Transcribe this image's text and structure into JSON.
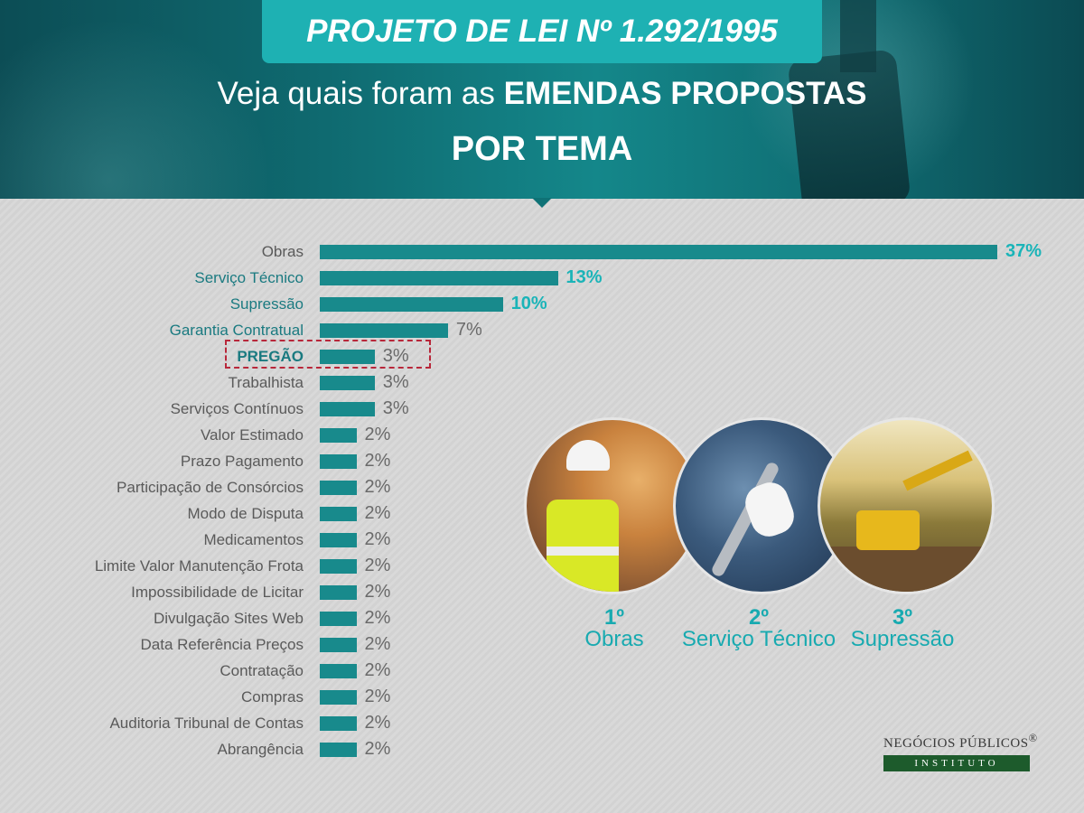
{
  "header": {
    "title": "PROJETO DE LEI Nº 1.292/1995",
    "subtitle_prefix": "Veja quais foram as",
    "subtitle_emphasis": "EMENDAS PROPOSTAS",
    "subtitle_line2": "POR TEMA"
  },
  "chart_data": {
    "type": "bar",
    "orientation": "horizontal",
    "title": "",
    "xlabel": "",
    "ylabel": "",
    "unit": "%",
    "xlim": [
      0,
      37
    ],
    "categories": [
      "Obras",
      "Serviço Técnico",
      "Supressão",
      "Garantia Contratual",
      "PREGÃO",
      "Trabalhista",
      "Serviços Contínuos",
      "Valor Estimado",
      "Prazo Pagamento",
      "Participação de Consórcios",
      "Modo de Disputa",
      "Medicamentos",
      "Limite Valor Manutenção Frota",
      "Impossibilidade de Licitar",
      "Divulgação Sites Web",
      "Data Referência Preços",
      "Contratação",
      "Compras",
      "Auditoria Tribunal de Contas",
      "Abrangência"
    ],
    "values": [
      37,
      13,
      10,
      7,
      3,
      3,
      3,
      2,
      2,
      2,
      2,
      2,
      2,
      2,
      2,
      2,
      2,
      2,
      2,
      2
    ],
    "value_labels": [
      "37%",
      "13%",
      "10%",
      "7%",
      "3%",
      "3%",
      "3%",
      "2%",
      "2%",
      "2%",
      "2%",
      "2%",
      "2%",
      "2%",
      "2%",
      "2%",
      "2%",
      "2%",
      "2%",
      "2%"
    ],
    "highlighted_category": "PREGÃO",
    "colors": {
      "bar": "#188a8c",
      "top_value": "#1ab4b8",
      "value": "#6a6a6a",
      "highlight_border": "#b8273a"
    }
  },
  "ranking": [
    {
      "position": "1º",
      "name": "Obras",
      "image": "construction-worker"
    },
    {
      "position": "2º",
      "name": "Serviço Técnico",
      "image": "gloved-hand-wrench"
    },
    {
      "position": "3º",
      "name": "Supressão",
      "image": "excavator"
    }
  ],
  "logo": {
    "line1": "NEGÓCIOS PÚBLICOS",
    "line1_mark": "®",
    "line2": "INSTITUTO"
  }
}
